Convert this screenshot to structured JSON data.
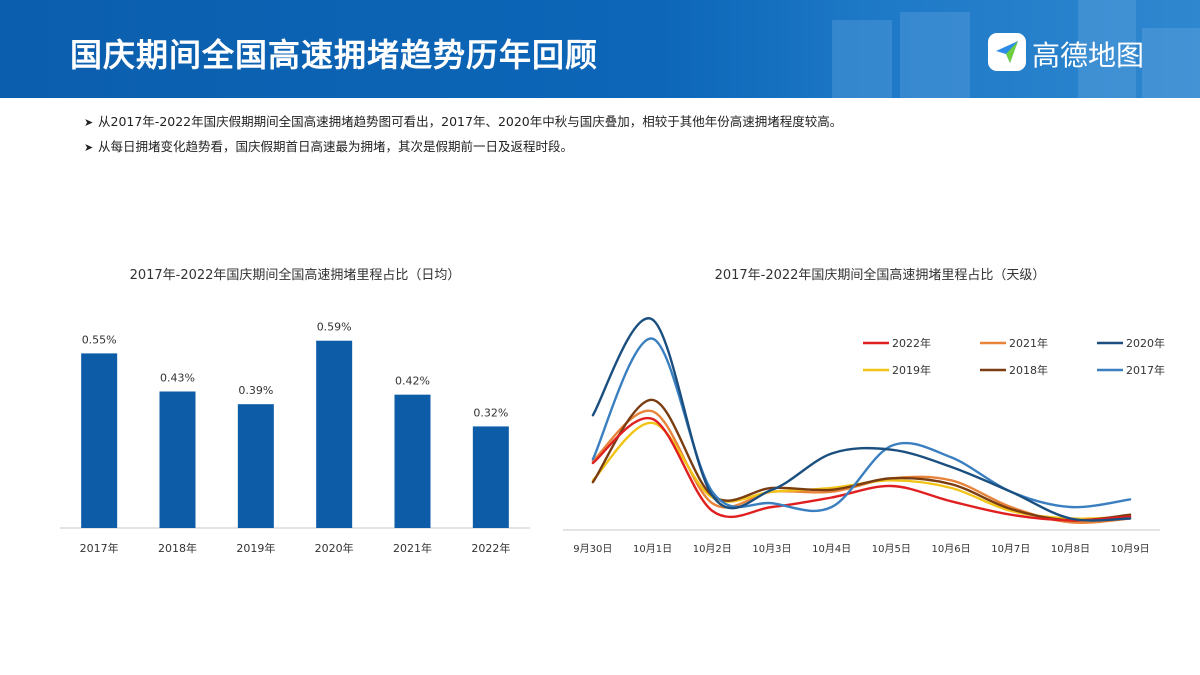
{
  "header": {
    "title": "国庆期间全国高速拥堵趋势历年回顾",
    "logo_text": "高德地图",
    "colors": {
      "band": "#0d63b3",
      "title": "#ffffff"
    }
  },
  "bullets": [
    "从2017年-2022年国庆假期期间全国高速拥堵趋势图可看出，2017年、2020年中秋与国庆叠加，相较于其他年份高速拥堵程度较高。",
    "从每日拥堵变化趋势看，国庆假期首日高速最为拥堵，其次是假期前一日及返程时段。"
  ],
  "chart_data": [
    {
      "type": "bar",
      "title": "2017年-2022年国庆期间全国高速拥堵里程占比（日均）",
      "categories": [
        "2017年",
        "2018年",
        "2019年",
        "2020年",
        "2021年",
        "2022年"
      ],
      "values": [
        0.55,
        0.43,
        0.39,
        0.59,
        0.42,
        0.32
      ],
      "value_labels": [
        "0.55%",
        "0.43%",
        "0.39%",
        "0.59%",
        "0.42%",
        "0.32%"
      ],
      "unit": "%",
      "ylim": [
        0,
        0.63
      ],
      "color": "#0d5ca8",
      "grid": false
    },
    {
      "type": "line",
      "title": "2017年-2022年国庆期间全国高速拥堵里程占比（天级）",
      "categories": [
        "9月30日",
        "10月1日",
        "10月2日",
        "10月3日",
        "10月4日",
        "10月5日",
        "10月6日",
        "10月7日",
        "10月8日",
        "10月9日"
      ],
      "ylim": [
        0,
        1.15
      ],
      "grid": false,
      "legend_position": "top-right",
      "smooth": true,
      "series": [
        {
          "name": "2022年",
          "color": "#e02020",
          "values": [
            0.35,
            0.58,
            0.1,
            0.12,
            0.17,
            0.23,
            0.15,
            0.08,
            0.05,
            0.07
          ]
        },
        {
          "name": "2021年",
          "color": "#e8833a",
          "values": [
            0.36,
            0.62,
            0.14,
            0.2,
            0.2,
            0.27,
            0.26,
            0.12,
            0.04,
            0.06
          ]
        },
        {
          "name": "2020年",
          "color": "#1a4f80",
          "values": [
            0.6,
            1.1,
            0.18,
            0.21,
            0.4,
            0.42,
            0.33,
            0.2,
            0.06,
            0.06
          ]
        },
        {
          "name": "2019年",
          "color": "#f2c418",
          "values": [
            0.26,
            0.56,
            0.17,
            0.2,
            0.22,
            0.26,
            0.22,
            0.1,
            0.06,
            0.07
          ]
        },
        {
          "name": "2018年",
          "color": "#7a3d12",
          "values": [
            0.25,
            0.68,
            0.18,
            0.22,
            0.21,
            0.27,
            0.24,
            0.11,
            0.05,
            0.08
          ]
        },
        {
          "name": "2017年",
          "color": "#3a7fc0",
          "values": [
            0.37,
            1.0,
            0.2,
            0.14,
            0.12,
            0.44,
            0.38,
            0.2,
            0.12,
            0.16
          ]
        }
      ]
    }
  ]
}
